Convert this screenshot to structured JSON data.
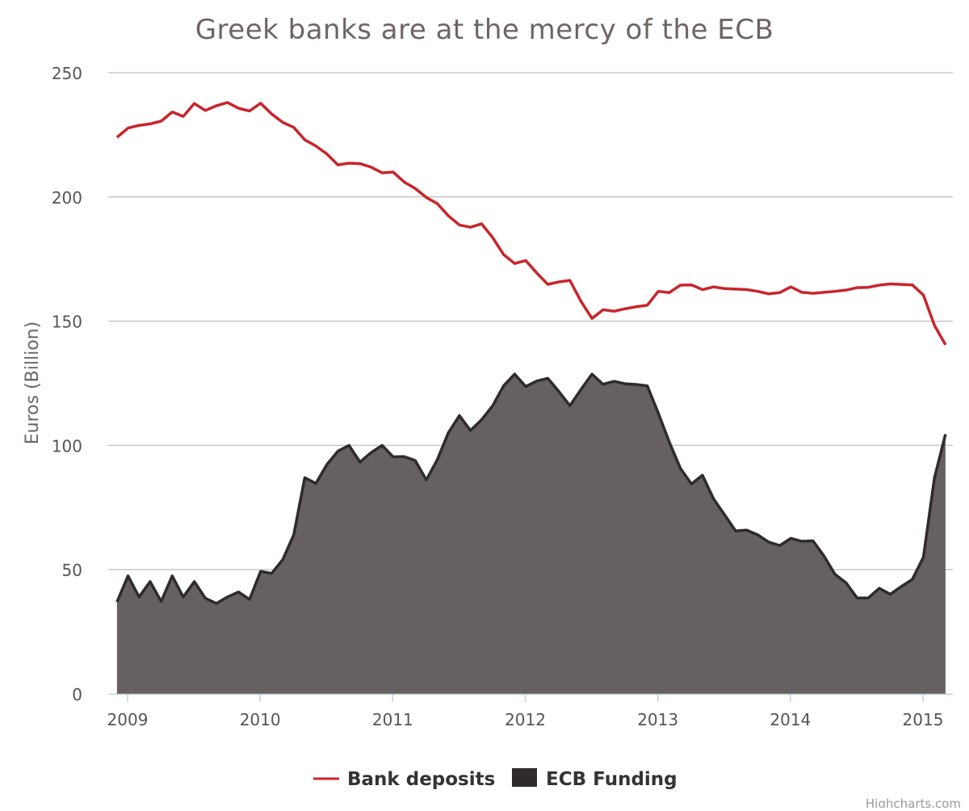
{
  "credits": "Highcharts.com",
  "colors": {
    "deposits": "#c8252b",
    "ecb_line": "#2f2b2b",
    "ecb_fill": "#676060",
    "grid": "#c8c8c8",
    "axis": "#c0d0e0"
  },
  "chart_data": {
    "type": "line",
    "title": "Greek banks are at the mercy of the ECB",
    "xlabel": "",
    "ylabel": "Euros (Billion)",
    "xlim": [
      2008.92,
      2015.17
    ],
    "ylim": [
      0,
      250
    ],
    "yticks": [
      0,
      50,
      100,
      150,
      200,
      250
    ],
    "xticks": [
      2009,
      2010,
      2011,
      2012,
      2013,
      2014,
      2015
    ],
    "xtick_labels": [
      "2009",
      "2010",
      "2011",
      "2012",
      "2013",
      "2014",
      "2015"
    ],
    "grid": true,
    "legend": "bottom-center",
    "x_start": 2008.92,
    "x_step_months": 1,
    "series": [
      {
        "name": "Bank deposits",
        "type": "line",
        "values": [
          224,
          227.7,
          228.8,
          229.4,
          230.5,
          234.2,
          232.4,
          237.6,
          234.8,
          236.7,
          238,
          235.7,
          234.6,
          237.7,
          233.4,
          230,
          228,
          223,
          220.5,
          217.3,
          212.9,
          213.6,
          213.4,
          212,
          209.7,
          210,
          206,
          203.4,
          199.8,
          197.3,
          192.4,
          188.7,
          187.8,
          189.2,
          183.7,
          176.8,
          173.2,
          174.4,
          169.4,
          164.8,
          165.8,
          166.4,
          158,
          151.1,
          154.6,
          154,
          155,
          155.8,
          156.4,
          162,
          161.5,
          164.5,
          164.6,
          162.7,
          163.8,
          163.1,
          162.9,
          162.7,
          162,
          161,
          161.5,
          163.8,
          161.6,
          161.2,
          161.6,
          162,
          162.5,
          163.5,
          163.6,
          164.5,
          165,
          164.8,
          164.6,
          160.5,
          148.3,
          140.5
        ]
      },
      {
        "name": "ECB Funding",
        "type": "area",
        "values": [
          37,
          47.5,
          39,
          45.2,
          37.2,
          47.5,
          39,
          45.2,
          38.5,
          36.4,
          39,
          41,
          38,
          49.3,
          48.5,
          54,
          64,
          87,
          84.7,
          92.3,
          97.7,
          100,
          93.3,
          97.1,
          100,
          95.4,
          95.5,
          93.9,
          86.1,
          94.3,
          105.1,
          112,
          106,
          110.3,
          115.9,
          124,
          128.7,
          123.7,
          125.9,
          127,
          121.7,
          116,
          122.5,
          128.7,
          124.6,
          125.8,
          124.8,
          124.5,
          124,
          113,
          101.3,
          90.8,
          84.5,
          88,
          78.5,
          72.1,
          65.6,
          65.9,
          64,
          61.1,
          59.7,
          62.6,
          61.4,
          61.6,
          55.5,
          48.1,
          44.7,
          38.6,
          38.6,
          42.5,
          40.1,
          43.2,
          46.1,
          55,
          87,
          104.5
        ]
      }
    ]
  }
}
